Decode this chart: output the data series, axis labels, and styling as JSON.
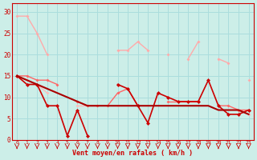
{
  "x": [
    0,
    1,
    2,
    3,
    4,
    5,
    6,
    7,
    8,
    9,
    10,
    11,
    12,
    13,
    14,
    15,
    16,
    17,
    18,
    19,
    20,
    21,
    22,
    23
  ],
  "line1": [
    29,
    29,
    25,
    20,
    null,
    null,
    null,
    null,
    null,
    null,
    21,
    21,
    23,
    21,
    null,
    20,
    null,
    19,
    23,
    null,
    19,
    18,
    null,
    14
  ],
  "line2": [
    15,
    13,
    13,
    8,
    8,
    1,
    7,
    1,
    null,
    null,
    13,
    12,
    8,
    4,
    11,
    10,
    9,
    9,
    9,
    14,
    8,
    6,
    6,
    7
  ],
  "line3": [
    15,
    15,
    14,
    14,
    13,
    null,
    9,
    8,
    8,
    8,
    11,
    12,
    8,
    null,
    null,
    9,
    9,
    9,
    9,
    null,
    8,
    8,
    7,
    7
  ],
  "line4": [
    15,
    14,
    13,
    12,
    11,
    10,
    9,
    8,
    8,
    8,
    8,
    8,
    8,
    8,
    8,
    8,
    8,
    8,
    8,
    8,
    7,
    7,
    7,
    6
  ],
  "line5": [
    15,
    14,
    13,
    11,
    null,
    null,
    8,
    8,
    8,
    null,
    8,
    null,
    null,
    null,
    null,
    null,
    null,
    null,
    null,
    null,
    null,
    6,
    null,
    6
  ],
  "bg_color": "#cceee8",
  "grid_color": "#aadddd",
  "line1_color": "#ffaaaa",
  "line2_color": "#cc0000",
  "line3_color": "#ff6666",
  "line4_color": "#aa0000",
  "line5_color": "#ffbbbb",
  "xlabel": "Vent moyen/en rafales ( km/h )",
  "ylim": [
    0,
    32
  ],
  "xlim": [
    -0.5,
    23.5
  ],
  "yticks": [
    0,
    5,
    10,
    15,
    20,
    25,
    30
  ],
  "xticks": [
    0,
    1,
    2,
    3,
    4,
    5,
    6,
    7,
    8,
    9,
    10,
    11,
    12,
    13,
    14,
    15,
    16,
    17,
    18,
    19,
    20,
    21,
    22,
    23
  ]
}
